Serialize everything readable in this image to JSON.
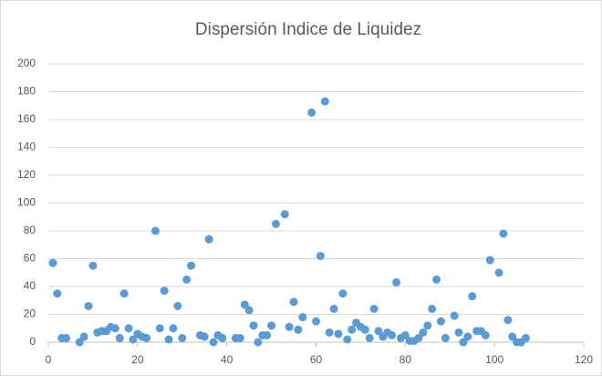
{
  "chart_data": {
    "type": "scatter",
    "title": "Dispersión Indice de Liquidez",
    "color": "#5b9bd5",
    "grid": true,
    "xlim": [
      0,
      120
    ],
    "xticks": [
      0,
      20,
      40,
      60,
      80,
      100,
      120
    ],
    "ylim": [
      0,
      200
    ],
    "yticks": [
      0,
      20,
      40,
      60,
      80,
      100,
      120,
      140,
      160,
      180,
      200
    ],
    "x": [
      1,
      2,
      3,
      4,
      7,
      8,
      9,
      10,
      11,
      12,
      13,
      14,
      15,
      16,
      17,
      18,
      19,
      20,
      21,
      22,
      24,
      25,
      26,
      27,
      28,
      29,
      30,
      31,
      32,
      34,
      35,
      36,
      37,
      38,
      39,
      42,
      43,
      44,
      45,
      46,
      47,
      48,
      49,
      50,
      51,
      53,
      54,
      55,
      56,
      57,
      59,
      60,
      61,
      62,
      63,
      64,
      65,
      66,
      67,
      68,
      69,
      70,
      71,
      72,
      73,
      74,
      75,
      76,
      77,
      78,
      79,
      80,
      81,
      82,
      83,
      84,
      85,
      86,
      87,
      88,
      89,
      91,
      92,
      93,
      94,
      95,
      96,
      97,
      98,
      99,
      101,
      102,
      103,
      104,
      105,
      106,
      107
    ],
    "values": [
      57,
      35,
      3,
      3,
      0,
      4,
      26,
      55,
      7,
      8,
      8,
      11,
      10,
      3,
      35,
      10,
      2,
      6,
      4,
      3,
      80,
      10,
      37,
      2,
      10,
      26,
      3,
      45,
      55,
      5,
      4,
      74,
      0,
      5,
      3,
      3,
      3,
      27,
      23,
      12,
      0,
      5,
      5,
      12,
      85,
      92,
      11,
      29,
      9,
      18,
      165,
      15,
      62,
      173,
      7,
      24,
      6,
      35,
      2,
      9,
      14,
      11,
      9,
      3,
      24,
      8,
      4,
      7,
      5,
      43,
      3,
      5,
      1,
      1,
      3,
      7,
      12,
      24,
      45,
      15,
      3,
      19,
      7,
      0,
      4,
      33,
      8,
      8,
      5,
      59,
      50,
      78,
      16,
      4,
      0,
      0,
      3
    ]
  }
}
